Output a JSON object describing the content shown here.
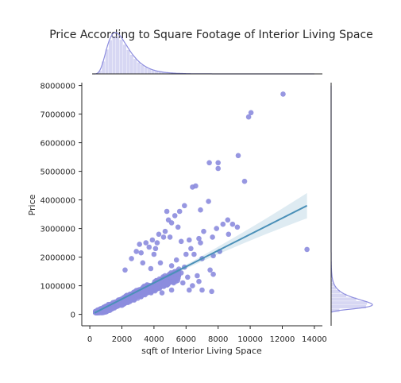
{
  "chart_data": {
    "type": "scatter",
    "title": "Price According to Square Footage of Interior Living Space",
    "xlabel": "sqft of Interior Living Space",
    "ylabel": "Price",
    "xlim": [
      -500,
      14500
    ],
    "ylim": [
      -400000,
      8100000
    ],
    "x_ticks": [
      0,
      2000,
      4000,
      6000,
      8000,
      10000,
      12000,
      14000
    ],
    "x_tick_labels": [
      "0",
      "2000",
      "4000",
      "6000",
      "8000",
      "10000",
      "12000",
      "14000"
    ],
    "y_ticks": [
      0,
      1000000,
      2000000,
      3000000,
      4000000,
      5000000,
      6000000,
      7000000,
      8000000
    ],
    "y_tick_labels": [
      "0",
      "1000000",
      "2000000",
      "3000000",
      "4000000",
      "5000000",
      "6000000",
      "7000000",
      "8000000"
    ],
    "grid": false,
    "point_color": "#8c8cde",
    "line_color": "#4a90b8",
    "marginal_color": "#8c8cde",
    "regression": {
      "x": [
        290,
        13540
      ],
      "y": [
        50000,
        3800000
      ]
    },
    "points": [
      [
        12050,
        7700000
      ],
      [
        10050,
        7050000
      ],
      [
        9900,
        6900000
      ],
      [
        9250,
        5550000
      ],
      [
        8000,
        5300000
      ],
      [
        8000,
        5100000
      ],
      [
        7450,
        5300000
      ],
      [
        9650,
        4650000
      ],
      [
        6600,
        4490000
      ],
      [
        6400,
        4450000
      ],
      [
        7400,
        3950000
      ],
      [
        13540,
        2270000
      ],
      [
        8600,
        3300000
      ],
      [
        8900,
        3150000
      ],
      [
        8300,
        3150000
      ],
      [
        7900,
        3000000
      ],
      [
        7100,
        2900000
      ],
      [
        8650,
        2800000
      ],
      [
        7650,
        2700000
      ],
      [
        9200,
        3050000
      ],
      [
        6900,
        3650000
      ],
      [
        5900,
        3800000
      ],
      [
        5600,
        3600000
      ],
      [
        5300,
        3450000
      ],
      [
        4800,
        3600000
      ],
      [
        4900,
        3300000
      ],
      [
        5100,
        3200000
      ],
      [
        5500,
        3050000
      ],
      [
        6800,
        2650000
      ],
      [
        6900,
        2500000
      ],
      [
        6300,
        2300000
      ],
      [
        6200,
        2600000
      ],
      [
        5700,
        2550000
      ],
      [
        6500,
        2100000
      ],
      [
        7700,
        2050000
      ],
      [
        8100,
        2200000
      ],
      [
        6000,
        2100000
      ],
      [
        7000,
        1950000
      ],
      [
        7500,
        1550000
      ],
      [
        7700,
        1400000
      ],
      [
        6700,
        1350000
      ],
      [
        6100,
        1300000
      ],
      [
        5800,
        1100000
      ],
      [
        6800,
        1150000
      ],
      [
        7000,
        850000
      ],
      [
        6400,
        1000000
      ],
      [
        7600,
        800000
      ],
      [
        4700,
        2900000
      ],
      [
        4300,
        2800000
      ],
      [
        3900,
        2600000
      ],
      [
        4200,
        2500000
      ],
      [
        4600,
        2700000
      ],
      [
        3500,
        2500000
      ],
      [
        3700,
        2350000
      ],
      [
        5000,
        2700000
      ],
      [
        2900,
        2200000
      ],
      [
        3200,
        2150000
      ],
      [
        5400,
        1900000
      ],
      [
        5100,
        1700000
      ],
      [
        5900,
        1650000
      ],
      [
        5700,
        1450000
      ],
      [
        5300,
        1250000
      ],
      [
        5100,
        850000
      ],
      [
        4800,
        1050000
      ],
      [
        4500,
        750000
      ],
      [
        6200,
        850000
      ],
      [
        5000,
        1400000
      ],
      [
        4400,
        1200000
      ],
      [
        2600,
        1950000
      ],
      [
        3300,
        1800000
      ],
      [
        4000,
        2100000
      ],
      [
        3800,
        1600000
      ],
      [
        2200,
        1550000
      ],
      [
        4400,
        1800000
      ],
      [
        3100,
        2450000
      ],
      [
        4100,
        2300000
      ]
    ]
  }
}
